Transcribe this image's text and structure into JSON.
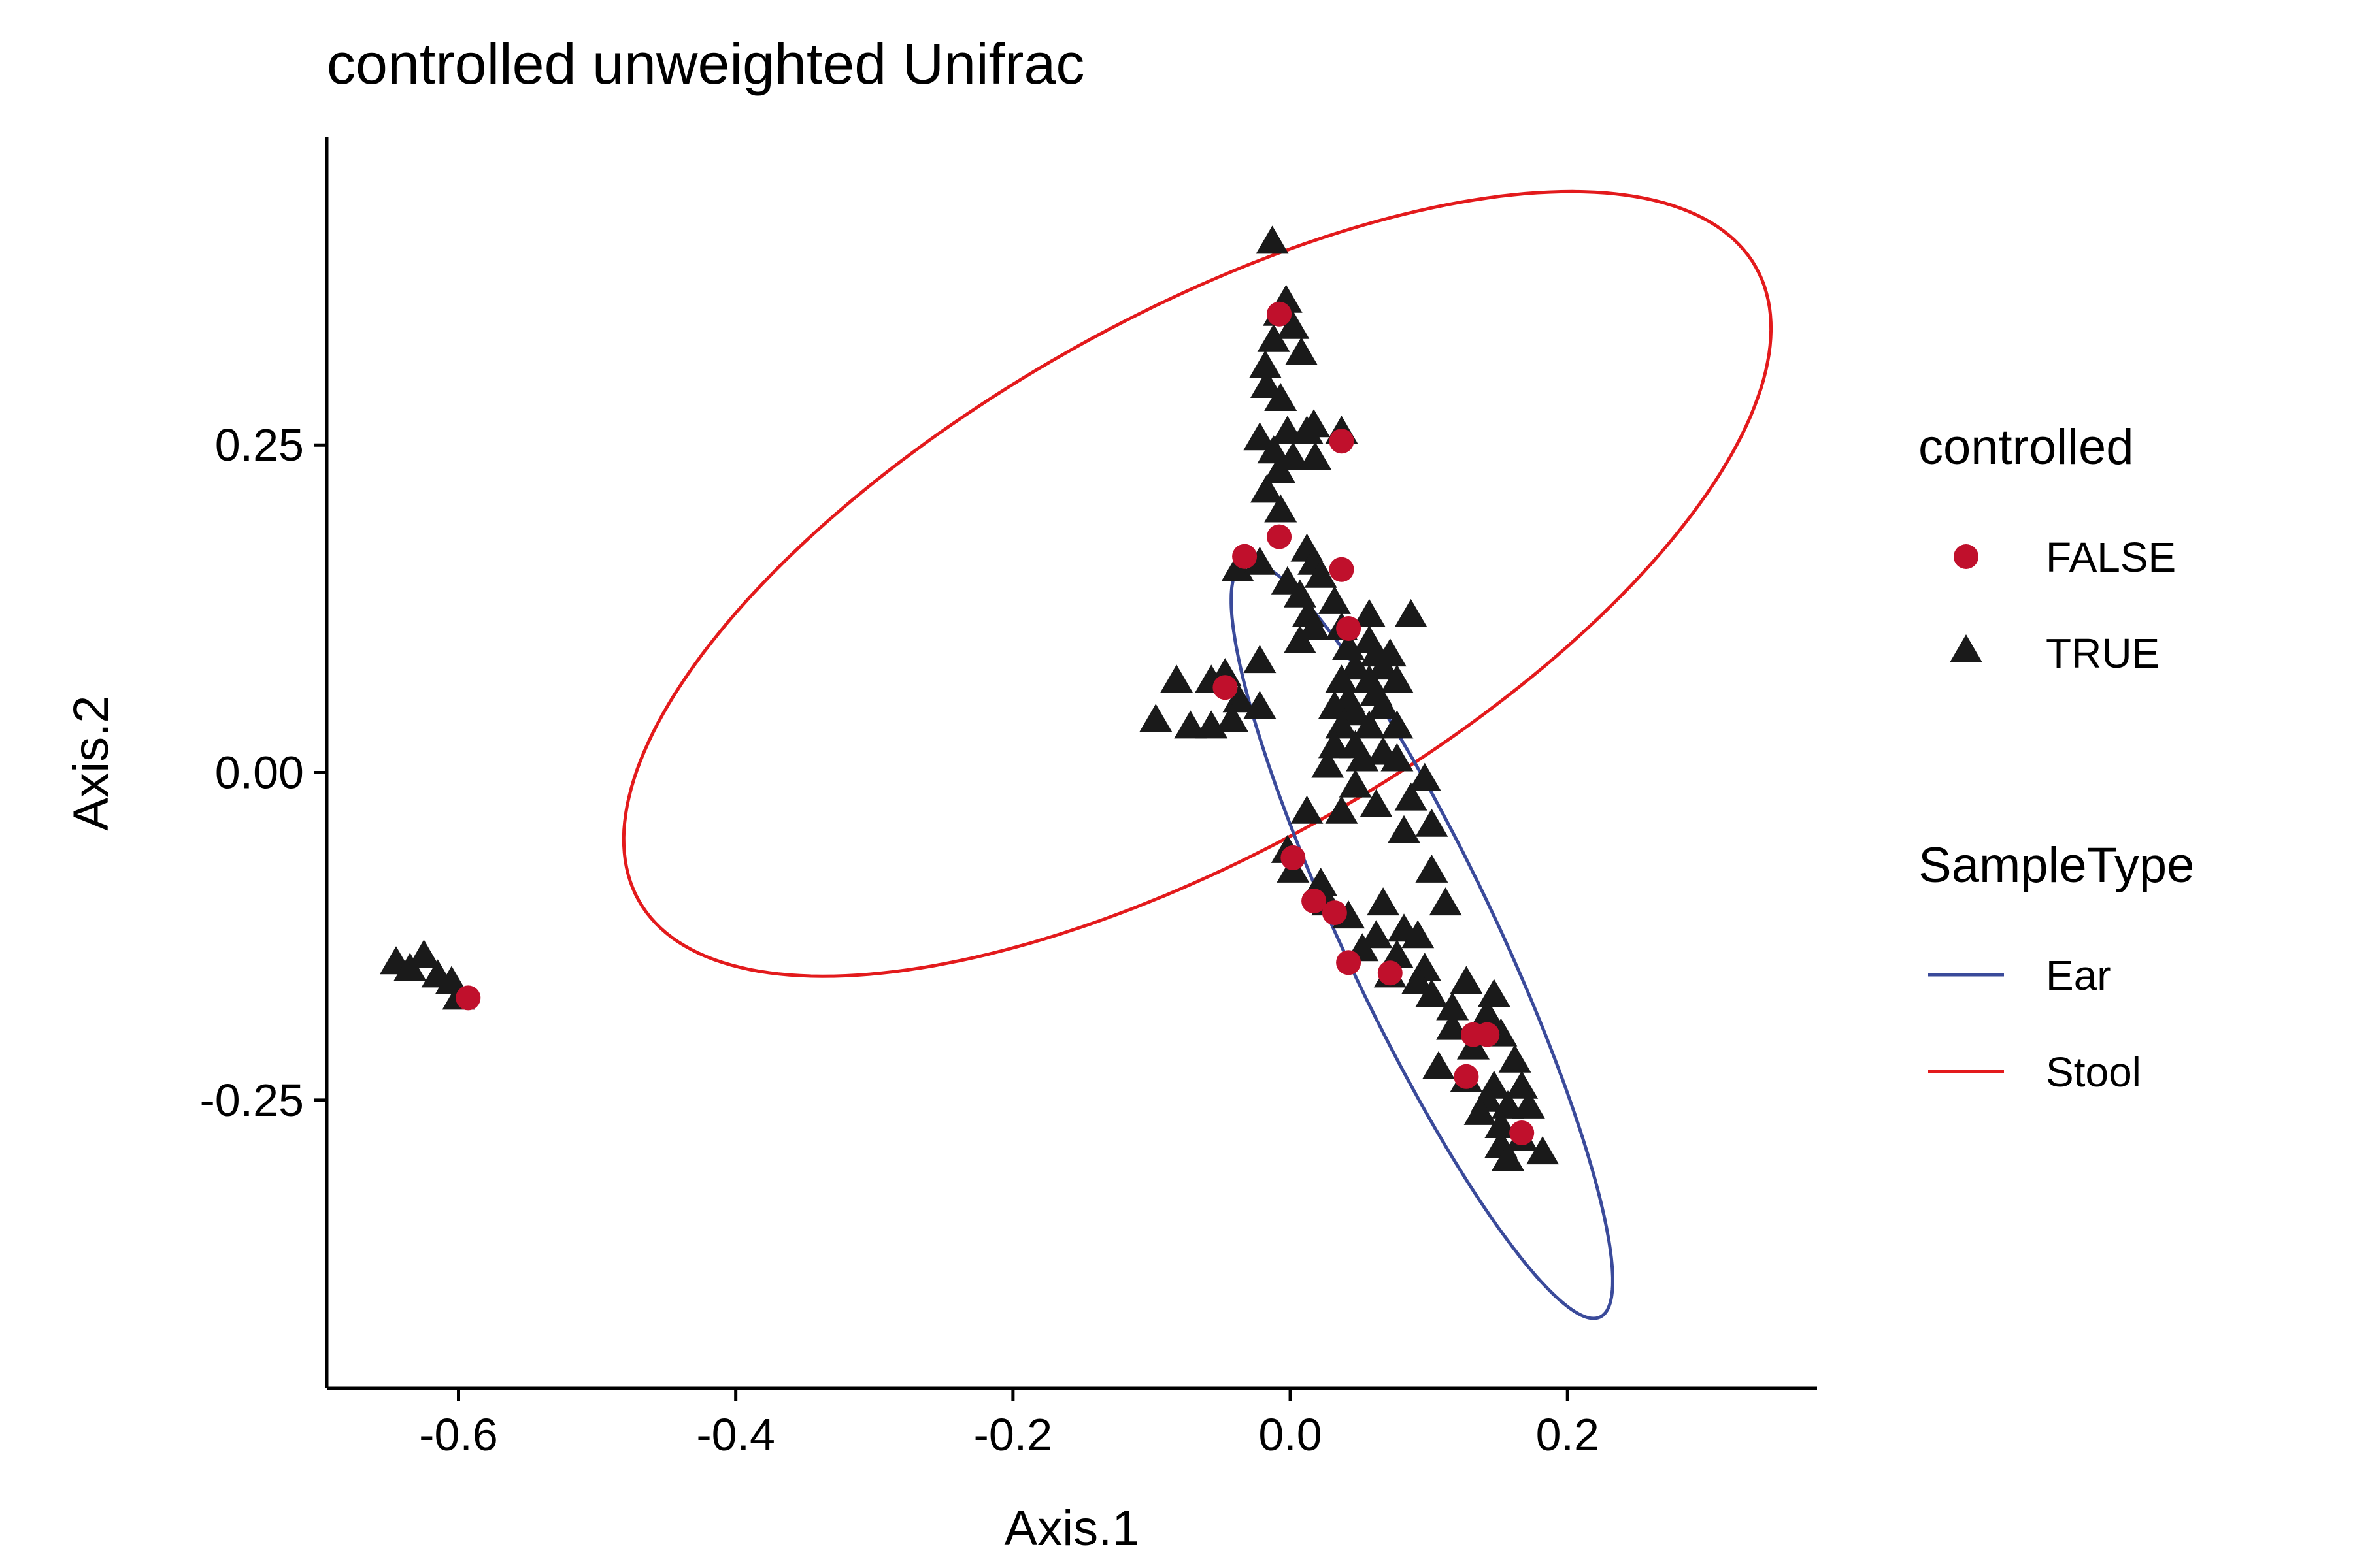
{
  "chart_data": {
    "type": "scatter",
    "title": "controlled unweighted Unifrac",
    "xlabel": "Axis.1",
    "ylabel": "Axis.2",
    "xlim": [
      -0.695,
      0.38
    ],
    "ylim": [
      -0.47,
      0.485
    ],
    "x_ticks": [
      {
        "value": -0.6,
        "label": "-0.6"
      },
      {
        "value": -0.4,
        "label": "-0.4"
      },
      {
        "value": -0.2,
        "label": "-0.2"
      },
      {
        "value": 0.0,
        "label": "0.0"
      },
      {
        "value": 0.2,
        "label": "0.2"
      }
    ],
    "y_ticks": [
      {
        "value": 0.25,
        "label": "0.25"
      },
      {
        "value": 0.0,
        "label": "0.00"
      },
      {
        "value": -0.25,
        "label": "-0.25"
      }
    ],
    "grid": false,
    "legend_position": "right",
    "shape_legend": {
      "title": "controlled",
      "entries": [
        {
          "label": "FALSE",
          "shape": "circle",
          "color": "#C0102C"
        },
        {
          "label": "TRUE",
          "shape": "triangle",
          "color": "#1A1A1A"
        }
      ]
    },
    "color_legend": {
      "title": "SampleType",
      "entries": [
        {
          "label": "Ear",
          "color": "#3A4A9A"
        },
        {
          "label": "Stool",
          "color": "#E31A1C"
        }
      ]
    },
    "series": [
      {
        "name": "TRUE",
        "shape": "triangle",
        "color": "#1A1A1A",
        "points": [
          [
            -0.645,
            -0.145
          ],
          [
            -0.635,
            -0.15
          ],
          [
            -0.625,
            -0.14
          ],
          [
            -0.615,
            -0.155
          ],
          [
            -0.605,
            -0.16
          ],
          [
            -0.6,
            -0.172
          ],
          [
            -0.013,
            0.405
          ],
          [
            -0.003,
            0.36
          ],
          [
            -0.008,
            0.35
          ],
          [
            0.002,
            0.34
          ],
          [
            -0.012,
            0.33
          ],
          [
            0.008,
            0.32
          ],
          [
            -0.018,
            0.31
          ],
          [
            -0.017,
            0.295
          ],
          [
            -0.007,
            0.285
          ],
          [
            0.017,
            0.265
          ],
          [
            -0.022,
            0.255
          ],
          [
            -0.002,
            0.26
          ],
          [
            0.012,
            0.26
          ],
          [
            0.037,
            0.26
          ],
          [
            -0.012,
            0.245
          ],
          [
            0.002,
            0.24
          ],
          [
            0.018,
            0.24
          ],
          [
            -0.008,
            0.23
          ],
          [
            -0.017,
            0.215
          ],
          [
            -0.007,
            0.2
          ],
          [
            -0.038,
            0.155
          ],
          [
            -0.022,
            0.16
          ],
          [
            0.012,
            0.17
          ],
          [
            0.017,
            0.16
          ],
          [
            0.022,
            0.15
          ],
          [
            -0.002,
            0.145
          ],
          [
            0.007,
            0.135
          ],
          [
            0.032,
            0.13
          ],
          [
            0.013,
            0.12
          ],
          [
            0.057,
            0.12
          ],
          [
            0.087,
            0.12
          ],
          [
            0.017,
            0.11
          ],
          [
            0.037,
            0.11
          ],
          [
            0.057,
            0.1
          ],
          [
            0.007,
            0.1
          ],
          [
            0.042,
            0.095
          ],
          [
            0.062,
            0.09
          ],
          [
            0.072,
            0.09
          ],
          [
            -0.022,
            0.085
          ],
          [
            0.047,
            0.08
          ],
          [
            0.067,
            0.08
          ],
          [
            -0.082,
            0.07
          ],
          [
            -0.057,
            0.07
          ],
          [
            -0.047,
            0.075
          ],
          [
            0.037,
            0.07
          ],
          [
            0.057,
            0.07
          ],
          [
            0.077,
            0.07
          ],
          [
            -0.037,
            0.055
          ],
          [
            0.042,
            0.055
          ],
          [
            0.062,
            0.06
          ],
          [
            -0.022,
            0.05
          ],
          [
            0.032,
            0.05
          ],
          [
            0.047,
            0.045
          ],
          [
            0.067,
            0.05
          ],
          [
            -0.097,
            0.04
          ],
          [
            -0.072,
            0.035
          ],
          [
            -0.042,
            0.04
          ],
          [
            -0.057,
            0.035
          ],
          [
            0.037,
            0.035
          ],
          [
            0.057,
            0.035
          ],
          [
            0.077,
            0.035
          ],
          [
            0.032,
            0.02
          ],
          [
            0.047,
            0.02
          ],
          [
            0.067,
            0.015
          ],
          [
            0.027,
            0.005
          ],
          [
            0.052,
            0.01
          ],
          [
            0.077,
            0.01
          ],
          [
            0.097,
            -0.005
          ],
          [
            0.047,
            -0.01
          ],
          [
            0.087,
            -0.02
          ],
          [
            0.062,
            -0.025
          ],
          [
            0.012,
            -0.03
          ],
          [
            0.037,
            -0.03
          ],
          [
            0.102,
            -0.04
          ],
          [
            0.082,
            -0.045
          ],
          [
            -0.002,
            -0.06
          ],
          [
            0.102,
            -0.075
          ],
          [
            0.002,
            -0.075
          ],
          [
            0.022,
            -0.085
          ],
          [
            0.027,
            -0.1
          ],
          [
            0.067,
            -0.1
          ],
          [
            0.112,
            -0.1
          ],
          [
            0.042,
            -0.11
          ],
          [
            0.082,
            -0.12
          ],
          [
            0.062,
            -0.125
          ],
          [
            0.092,
            -0.125
          ],
          [
            0.052,
            -0.135
          ],
          [
            0.077,
            -0.14
          ],
          [
            0.097,
            -0.15
          ],
          [
            0.072,
            -0.155
          ],
          [
            0.092,
            -0.16
          ],
          [
            0.127,
            -0.16
          ],
          [
            0.147,
            -0.17
          ],
          [
            0.102,
            -0.17
          ],
          [
            0.117,
            -0.18
          ],
          [
            0.142,
            -0.185
          ],
          [
            0.117,
            -0.195
          ],
          [
            0.152,
            -0.2
          ],
          [
            0.132,
            -0.21
          ],
          [
            0.162,
            -0.22
          ],
          [
            0.107,
            -0.225
          ],
          [
            0.127,
            -0.235
          ],
          [
            0.147,
            -0.24
          ],
          [
            0.142,
            -0.25
          ],
          [
            0.167,
            -0.24
          ],
          [
            0.157,
            -0.255
          ],
          [
            0.137,
            -0.26
          ],
          [
            0.172,
            -0.255
          ],
          [
            0.152,
            -0.27
          ],
          [
            0.167,
            -0.28
          ],
          [
            0.152,
            -0.285
          ],
          [
            0.182,
            -0.29
          ],
          [
            0.157,
            -0.295
          ]
        ]
      },
      {
        "name": "FALSE",
        "shape": "circle",
        "color": "#C0102C",
        "points": [
          [
            -0.593,
            -0.172
          ],
          [
            -0.008,
            0.35
          ],
          [
            0.037,
            0.253
          ],
          [
            -0.008,
            0.18
          ],
          [
            -0.033,
            0.165
          ],
          [
            0.037,
            0.155
          ],
          [
            0.042,
            0.11
          ],
          [
            -0.047,
            0.065
          ],
          [
            0.002,
            -0.065
          ],
          [
            0.017,
            -0.098
          ],
          [
            0.032,
            -0.107
          ],
          [
            0.042,
            -0.145
          ],
          [
            0.072,
            -0.153
          ],
          [
            0.132,
            -0.2
          ],
          [
            0.142,
            -0.2
          ],
          [
            0.127,
            -0.232
          ],
          [
            0.167,
            -0.275
          ]
        ]
      }
    ],
    "ellipses": [
      {
        "name": "Stool",
        "color": "#E31A1C",
        "cx": -0.067,
        "cy": 0.144,
        "a": 0.47,
        "b": 0.2,
        "angle_deg": 31.6
      },
      {
        "name": "Ear",
        "color": "#3A4A9A",
        "cx": 0.095,
        "cy": -0.128,
        "a": 0.315,
        "b": 0.055,
        "angle_deg": -66.0
      }
    ]
  }
}
